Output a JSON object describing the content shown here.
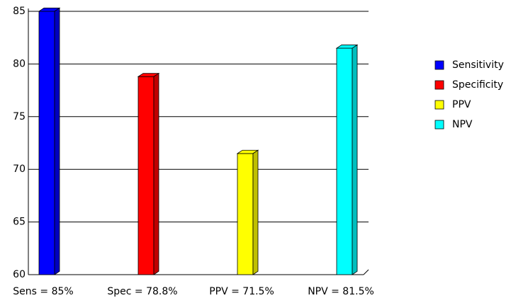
{
  "chart_data": {
    "type": "bar",
    "categories": [
      "Sens = 85%",
      "Spec = 78.8%",
      "PPV = 71.5%",
      "NPV = 81.5%"
    ],
    "series": [
      {
        "name": "Sensitivity",
        "color": "#0000ff",
        "values": [
          85,
          null,
          null,
          null
        ]
      },
      {
        "name": "Specificity",
        "color": "#ff0000",
        "values": [
          null,
          78.8,
          null,
          null
        ]
      },
      {
        "name": "PPV",
        "color": "#ffff00",
        "values": [
          null,
          null,
          71.5,
          null
        ]
      },
      {
        "name": "NPV",
        "color": "#00ffff",
        "values": [
          null,
          null,
          null,
          81.5
        ]
      }
    ],
    "ylim": [
      60,
      85
    ],
    "yticks": [
      60,
      65,
      70,
      75,
      80,
      85
    ],
    "grid": true,
    "legend": "right"
  }
}
